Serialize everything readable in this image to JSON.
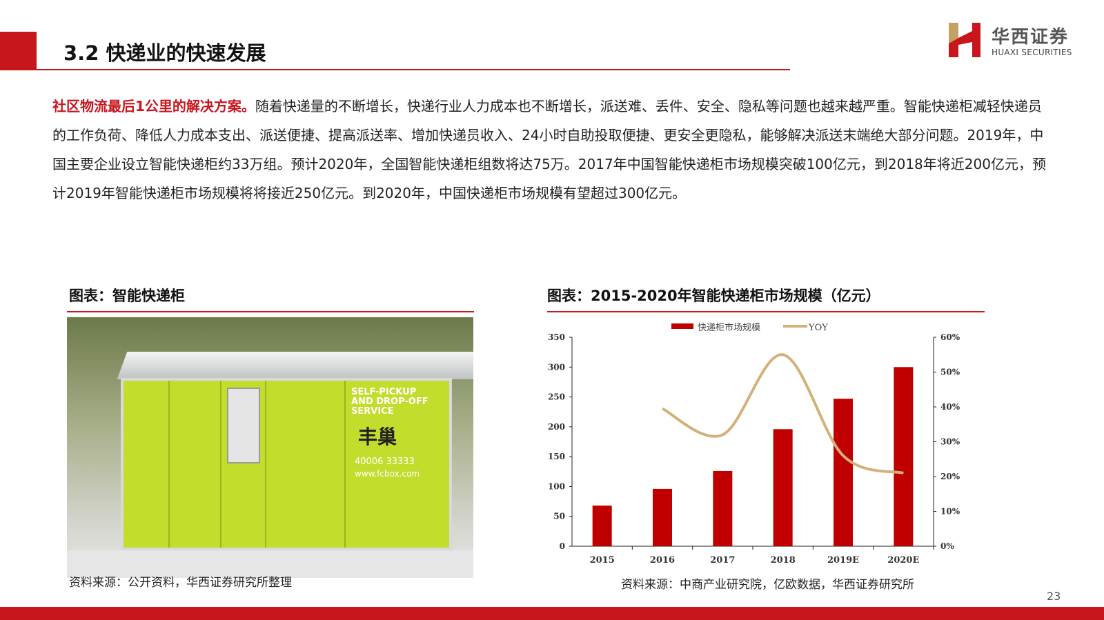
{
  "header": {
    "title": "3.2 快递业的快速发展",
    "logo_cn": "华西证券",
    "logo_en": "HUAXI SECURITIES"
  },
  "body": {
    "highlight": "社区物流最后1公里的解决方案。",
    "text": "随着快递量的不断增长，快递行业人力成本也不断增长，派送难、丢件、安全、隐私等问题也越来越严重。智能快递柜减轻快递员的工作负荷、降低人力成本支出、派送便捷、提高派送率、增加快递员收入、24小时自助投取便捷、更安全更隐私，能够解决派送末端绝大部分问题。2019年，中国主要企业设立智能快递柜约33万组。预计2020年，全国智能快递柜组数将达75万。2017年中国智能快递柜市场规模突破100亿元，到2018年将近200亿元，预计2019年智能快递柜市场规模将将接近250亿元。到2020年，中国快递柜市场规模有望超过300亿元。"
  },
  "left": {
    "caption": "图表：智能快递柜",
    "photo_text": "SELF-PICKUP AND DROP-OFF SERVICE",
    "photo_brand": "丰巢",
    "photo_phone": "40006 33333",
    "photo_url": "www.fcbox.com",
    "source": "资料来源：公开资料，华西证券研究所整理"
  },
  "right": {
    "caption": "图表：2015-2020年智能快递柜市场规模（亿元）",
    "source": "资料来源：中商产业研究院，亿欧数据，华西证券研究所"
  },
  "page_number": "23",
  "chart_data": {
    "type": "bar+line",
    "categories": [
      "2015",
      "2016",
      "2017",
      "2018",
      "2019E",
      "2020E"
    ],
    "series": [
      {
        "name": "快递柜市场规模",
        "type": "bar",
        "axis": "left",
        "color": "#c00000",
        "values": [
          68,
          96,
          126,
          196,
          247,
          300
        ]
      },
      {
        "name": "YOY",
        "type": "line",
        "axis": "right",
        "color": "#d4b07a",
        "values": [
          null,
          0.395,
          0.32,
          0.55,
          0.26,
          0.21
        ]
      }
    ],
    "ylim_left": [
      0,
      350
    ],
    "yticks_left": [
      "0",
      "50",
      "100",
      "150",
      "200",
      "250",
      "300",
      "350"
    ],
    "ylim_right": [
      0,
      0.6
    ],
    "yticks_right": [
      "0%",
      "10%",
      "20%",
      "30%",
      "40%",
      "50%",
      "60%"
    ],
    "legend": "top",
    "grid": false
  }
}
